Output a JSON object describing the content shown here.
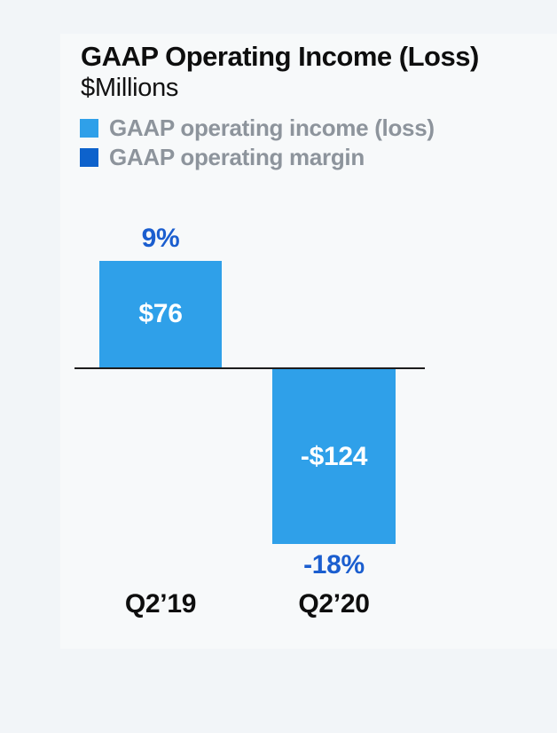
{
  "header": {
    "title": "GAAP Operating Income (Loss)",
    "subtitle": "$Millions"
  },
  "legend": {
    "items": [
      {
        "label": "GAAP operating income (loss)",
        "color": "#2FA0E9"
      },
      {
        "label": "GAAP operating margin",
        "color": "#0D62CC"
      }
    ]
  },
  "bars": [
    {
      "category": "Q2’19",
      "value_label": "$76",
      "margin_label": "9%"
    },
    {
      "category": "Q2’20",
      "value_label": "-$124",
      "margin_label": "-18%"
    }
  ],
  "chart_data": {
    "type": "bar",
    "title": "GAAP Operating Income (Loss)",
    "subtitle": "$Millions",
    "categories": [
      "Q2’19",
      "Q2’20"
    ],
    "series": [
      {
        "name": "GAAP operating income (loss)",
        "unit": "$M",
        "values": [
          76,
          -124
        ],
        "labels": [
          "$76",
          "-$124"
        ]
      },
      {
        "name": "GAAP operating margin",
        "unit": "%",
        "values": [
          9,
          -18
        ],
        "labels": [
          "9%",
          "-18%"
        ]
      }
    ],
    "baseline": 0,
    "ylim": [
      -140,
      90
    ],
    "grid": false,
    "legend_position": "top-left",
    "colors": {
      "bar": "#2FA0E9",
      "margin_swatch": "#0D62CC",
      "margin_label_text": "#1B5ECF",
      "axis_line": "#1C1C1C",
      "legend_text": "#8D949C",
      "card_background": "#F7F9FA",
      "page_background": "#F2F5F8"
    }
  }
}
